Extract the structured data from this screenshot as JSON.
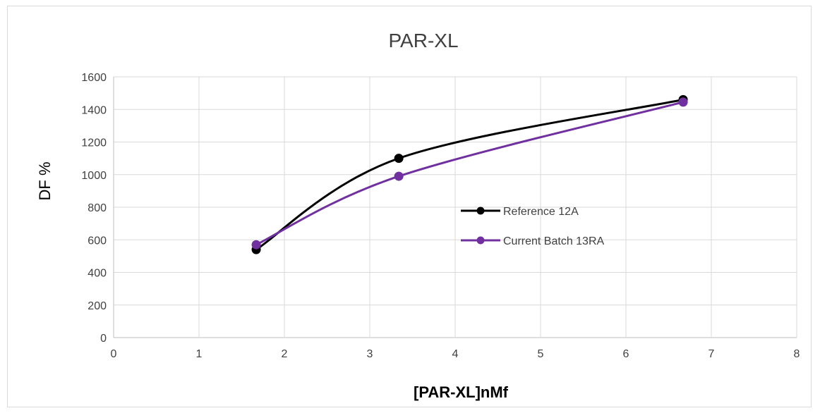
{
  "chart_data": {
    "type": "scatter",
    "title": "PAR-XL",
    "xlabel": "[PAR-XL]nMf",
    "ylabel": "DF %",
    "xlim": [
      0,
      8
    ],
    "ylim": [
      0,
      1600
    ],
    "xticks": [
      0,
      1,
      2,
      3,
      4,
      5,
      6,
      7,
      8
    ],
    "yticks": [
      0,
      200,
      400,
      600,
      800,
      1000,
      1200,
      1400,
      1600
    ],
    "grid": true,
    "smooth": true,
    "legend": "center-right",
    "series": [
      {
        "name": "Reference 12A",
        "color": "#000000",
        "x": [
          1.67,
          3.34,
          6.67
        ],
        "y": [
          540,
          1100,
          1460
        ]
      },
      {
        "name": "Current Batch 13RA",
        "color": "#7030a0",
        "x": [
          1.67,
          3.34,
          6.67
        ],
        "y": [
          570,
          990,
          1445
        ]
      }
    ]
  }
}
